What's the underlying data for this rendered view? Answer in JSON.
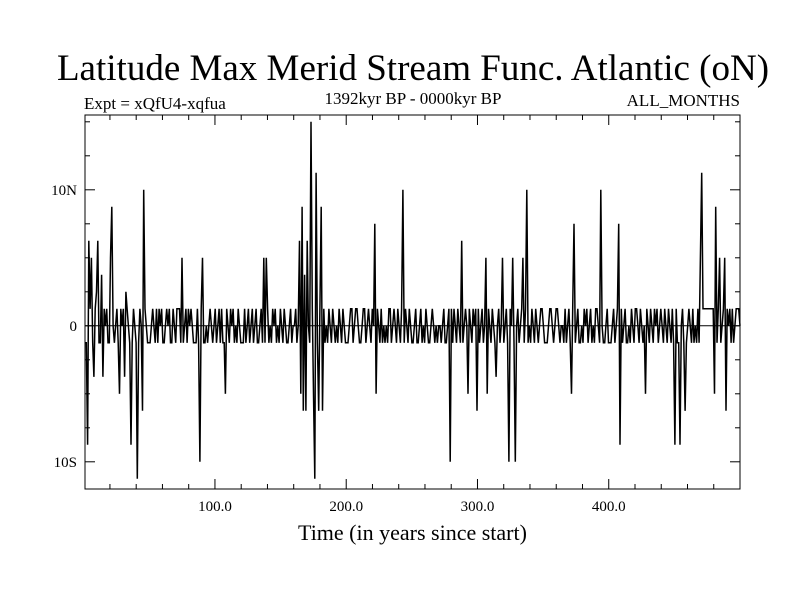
{
  "chart_data": {
    "type": "line",
    "title": "Latitude Max Merid Stream Func. Atlantic (oN)",
    "subtitle": "1392kyr BP - 0000kyr BP",
    "experiment": "Expt = xQfU4-xqfua",
    "months": "ALL_MONTHS",
    "xlabel": "Time (in years since start)",
    "ylabel": "",
    "xlim": [
      1,
      500
    ],
    "ylim": [
      -12,
      15.5
    ],
    "xticks": [
      100,
      200,
      300,
      400
    ],
    "xtick_labels": [
      "100.0",
      "200.0",
      "300.0",
      "400.0"
    ],
    "yticks": [
      -10,
      0,
      10
    ],
    "ytick_labels": [
      "10S",
      "0",
      "10N"
    ],
    "baseline": 0,
    "grid": false,
    "series": [
      {
        "values": [
          -1.25,
          -1.25,
          -8.75,
          6.25,
          1.25,
          5.0,
          -1.25,
          -3.75,
          1.25,
          2.5,
          6.25,
          -1.25,
          -1.25,
          3.75,
          -3.75,
          1.25,
          0,
          1.25,
          -1.25,
          -1.25,
          5.0,
          8.75,
          0,
          -1.25,
          0,
          1.25,
          -1.25,
          -5.0,
          1.25,
          0,
          1.25,
          -3.75,
          2.5,
          1.25,
          0,
          -1.25,
          -8.75,
          -1.25,
          1.25,
          0,
          -1.25,
          -11.25,
          -1.25,
          1.25,
          0,
          -6.25,
          10.0,
          1.25,
          0,
          -1.25,
          -1.25,
          -1.25,
          0,
          1.25,
          0,
          -1.25,
          1.25,
          -1.25,
          1.25,
          0,
          1.25,
          -1.25,
          -1.25,
          0,
          1.25,
          0,
          1.25,
          -1.25,
          -1.25,
          1.25,
          0,
          -1.25,
          1.25,
          1.25,
          1.25,
          -1.25,
          5.0,
          -1.25,
          0,
          1.25,
          -1.25,
          1.25,
          0,
          1.25,
          0,
          -1.25,
          -1.25,
          -1.25,
          1.25,
          -1.25,
          -10.0,
          1.25,
          5.0,
          -1.25,
          -1.25,
          0,
          -1.25,
          0,
          1.25,
          0,
          -1.25,
          0,
          1.25,
          -1.25,
          0,
          1.25,
          -1.25,
          1.25,
          -1.25,
          -1.25,
          -5.0,
          1.25,
          0,
          -1.25,
          1.25,
          0,
          1.25,
          -1.25,
          0,
          -1.25,
          1.25,
          0,
          -1.25,
          -1.25,
          -1.25,
          1.25,
          -1.25,
          0,
          1.25,
          -1.25,
          0,
          1.25,
          -1.25,
          0,
          1.25,
          -1.25,
          -1.25,
          0,
          1.25,
          -1.25,
          5.0,
          -1.25,
          5.0,
          1.25,
          -1.25,
          0,
          -1.25,
          1.25,
          0,
          1.25,
          -1.25,
          0,
          -1.25,
          1.25,
          0,
          -1.25,
          1.25,
          0,
          -1.25,
          -1.25,
          0,
          1.25,
          -1.25,
          0,
          0,
          1.25,
          -1.25,
          0,
          6.25,
          -5.0,
          8.75,
          -6.25,
          3.75,
          -6.25,
          6.25,
          0,
          -1.25,
          15.0,
          1.25,
          -5.0,
          -11.25,
          11.25,
          -1.25,
          -6.25,
          1.25,
          8.75,
          -6.25,
          1.25,
          -1.25,
          0,
          -1.25,
          1.25,
          0,
          -1.25,
          1.25,
          0,
          -1.25,
          0,
          -1.25,
          1.25,
          0,
          -1.25,
          1.25,
          0,
          -1.25,
          -1.25,
          -1.25,
          0,
          1.25,
          1.25,
          -1.25,
          0,
          1.25,
          1.25,
          0,
          -1.25,
          -1.25,
          0,
          1.25,
          1.25,
          -1.25,
          0,
          1.25,
          0,
          -1.25,
          1.25,
          0,
          7.5,
          -5.0,
          1.25,
          0,
          -1.25,
          1.25,
          -1.25,
          0,
          -1.25,
          0,
          -1.25,
          1.25,
          1.25,
          -1.25,
          0,
          1.25,
          0,
          -1.25,
          1.25,
          0,
          -1.25,
          1.25,
          10.0,
          -1.25,
          1.25,
          0,
          -1.25,
          1.25,
          0,
          -1.25,
          -1.25,
          0,
          1.25,
          -1.25,
          -1.25,
          0,
          1.25,
          -1.25,
          0,
          -1.25,
          1.25,
          0,
          -1.25,
          -1.25,
          0,
          1.25,
          0,
          -1.25,
          0,
          -1.25,
          0,
          0,
          -1.25,
          0,
          1.25,
          -1.25,
          -1.25,
          0,
          1.25,
          -10.0,
          1.25,
          -1.25,
          1.25,
          0,
          -1.25,
          1.25,
          0,
          -1.25,
          6.25,
          -1.25,
          0,
          1.25,
          0,
          -5.0,
          1.25,
          0,
          -1.25,
          1.25,
          0,
          1.25,
          -6.25,
          1.25,
          -1.25,
          0,
          1.25,
          -1.25,
          0,
          5.0,
          -5.0,
          1.25,
          0,
          -1.25,
          1.25,
          0,
          -1.25,
          -3.75,
          0,
          1.25,
          -1.25,
          0,
          5.0,
          -1.25,
          0,
          1.25,
          -1.25,
          -10.0,
          1.25,
          0,
          5.0,
          -1.25,
          -10.0,
          0,
          1.25,
          -1.25,
          0,
          1.25,
          5.0,
          -1.25,
          1.25,
          10.0,
          -1.25,
          0,
          -1.25,
          1.25,
          0,
          -1.25,
          1.25,
          0,
          -1.25,
          0,
          1.25,
          1.25,
          0,
          -1.25,
          -1.25,
          -1.25,
          0,
          1.25,
          1.25,
          0,
          -1.25,
          0,
          1.25,
          1.25,
          0,
          -1.25,
          0,
          0,
          -1.25,
          1.25,
          -1.25,
          0,
          1.25,
          -1.25,
          -5.0,
          1.25,
          7.5,
          -1.25,
          0,
          1.25,
          -1.25,
          -1.25,
          0,
          -1.25,
          1.25,
          0,
          1.25,
          -1.25,
          0,
          1.25,
          -1.25,
          0,
          -1.25,
          1.25,
          1.25,
          0,
          -1.25,
          10.0,
          0,
          -1.25,
          -1.25,
          0,
          1.25,
          -1.25,
          -1.25,
          -1.25,
          0,
          1.25,
          -1.25,
          0,
          1.25,
          7.5,
          -8.75,
          1.25,
          -1.25,
          0,
          1.25,
          -1.25,
          -1.25,
          0,
          -1.25,
          1.25,
          0,
          -1.25,
          1.25,
          1.25,
          0,
          -1.25,
          1.25,
          0,
          -1.25,
          0,
          -5.0,
          1.25,
          0,
          -1.25,
          1.25,
          0,
          -1.25,
          1.25,
          0,
          1.25,
          -1.25,
          0,
          1.25,
          0,
          -1.25,
          1.25,
          0,
          -1.25,
          1.25,
          0,
          -1.25,
          1.25,
          -1.25,
          -8.75,
          1.25,
          -1.25,
          -1.25,
          -8.75,
          0,
          1.25,
          -1.25,
          -6.25,
          -1.25,
          0,
          1.25,
          0,
          -1.25,
          1.25,
          -1.25,
          0,
          -1.25,
          1.25,
          -1.25,
          5.0,
          11.25,
          1.25,
          1.25,
          1.25,
          1.25,
          1.25,
          1.25,
          1.25,
          1.25,
          1.25,
          -5.0,
          8.75,
          -1.25,
          1.25,
          5.0,
          -1.25,
          0,
          1.25,
          5.0,
          -6.25,
          1.25,
          0,
          1.25,
          -1.25,
          1.25,
          -1.25,
          0,
          1.25,
          1.25,
          1.25,
          0
        ]
      }
    ]
  }
}
